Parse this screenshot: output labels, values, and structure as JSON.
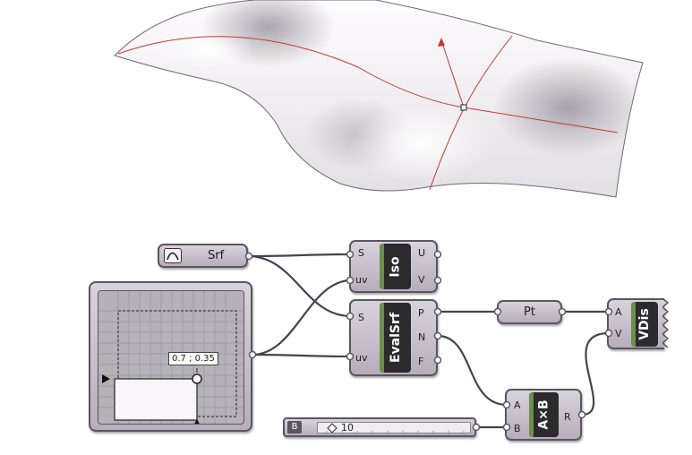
{
  "surface": {
    "color_light": "#fbf9fb",
    "color_dark": "#8c8a92",
    "iso_curve_color": "#c0392b"
  },
  "components": {
    "srf_param": {
      "label": "Srf",
      "icon": "surface-param-icon"
    },
    "iso": {
      "name": "Iso",
      "inputs": [
        "S",
        "uv"
      ],
      "outputs": [
        "U",
        "V"
      ]
    },
    "evalsrf": {
      "name": "EvalSrf",
      "inputs": [
        "S",
        "uv"
      ],
      "outputs": [
        "P",
        "N",
        "F"
      ]
    },
    "pt": {
      "label": "Pt"
    },
    "vdis": {
      "name": "VDis",
      "inputs": [
        "A",
        "V"
      ]
    },
    "multiply": {
      "name": "A×B",
      "inputs": [
        "A",
        "B"
      ],
      "outputs": [
        "R"
      ]
    },
    "slider": {
      "tag": "B",
      "value": "10"
    },
    "mdslider": {
      "value": "0.7 ; 0.35"
    }
  },
  "colors": {
    "wire": "#4a4050",
    "component_border": "#5c5463",
    "core": "#2b2a2c"
  }
}
